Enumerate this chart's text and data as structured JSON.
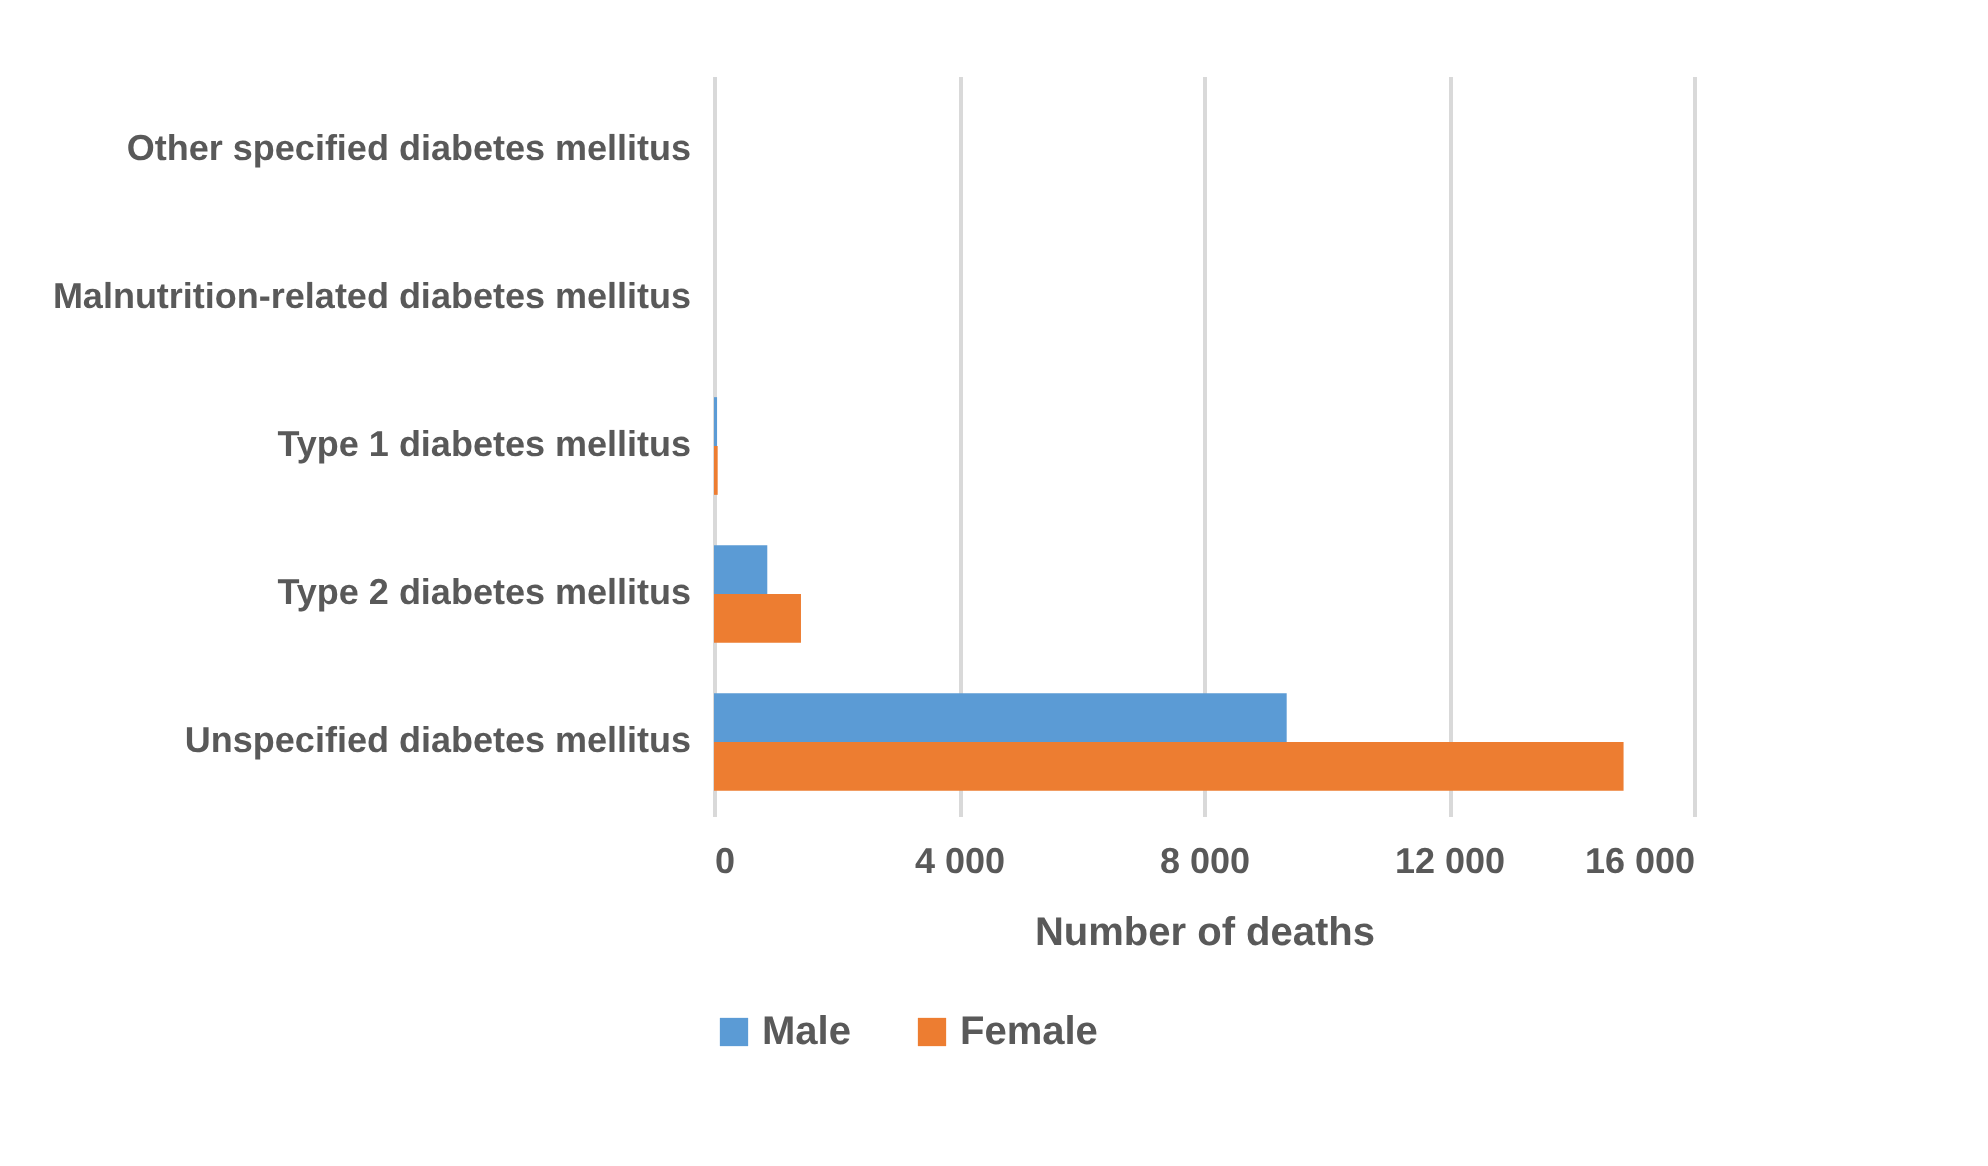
{
  "chart_data": {
    "type": "bar",
    "orientation": "horizontal",
    "xlabel": "Number of deaths",
    "categories": [
      "Other specified diabetes mellitus",
      "Malnutrition-related diabetes mellitus",
      "Type 1 diabetes mellitus",
      "Type 2 diabetes mellitus",
      "Unspecified diabetes mellitus"
    ],
    "series": [
      {
        "name": "Male",
        "color": "#5b9bd5",
        "values": [
          0,
          0,
          50,
          870,
          9350
        ]
      },
      {
        "name": "Female",
        "color": "#ed7d31",
        "values": [
          0,
          0,
          60,
          1420,
          14850
        ]
      }
    ],
    "xlim": [
      0,
      16000
    ],
    "xticks": [
      0,
      {
        "value": 4000,
        "label": "4 000"
      },
      {
        "value": 8000,
        "label": "8 000"
      },
      {
        "value": 12000,
        "label": "12 000"
      },
      {
        "value": 16000,
        "label": "16 000"
      }
    ],
    "grid": "x",
    "legend": "bottom"
  }
}
